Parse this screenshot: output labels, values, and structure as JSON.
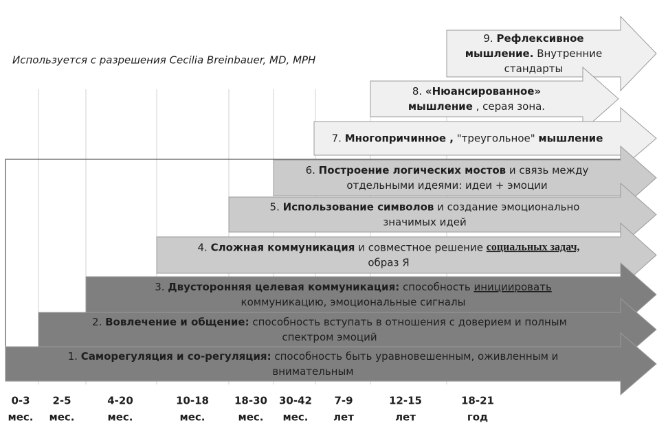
{
  "credit": "Используется с разрешения Cecilia Breinbauer, MD, MPH",
  "arrows": [
    {
      "lines": [
        [
          {
            "t": "1. "
          },
          {
            "t": "Саморегуляция и со-регуляция:",
            "b": true
          },
          {
            "t": " способность быть уравновешенным, оживленным и"
          }
        ],
        [
          {
            "t": "внимательным"
          }
        ]
      ]
    },
    {
      "lines": [
        [
          {
            "t": "2. "
          },
          {
            "t": "Вовлечение и общение:",
            "b": true
          },
          {
            "t": " способность вступать в отношения с доверием и полным"
          }
        ],
        [
          {
            "t": "спектром эмоций"
          }
        ]
      ]
    },
    {
      "lines": [
        [
          {
            "t": "3. "
          },
          {
            "t": "Двусторонняя целевая коммуникация:",
            "b": true
          },
          {
            "t": " способность "
          },
          {
            "t": "инициировать",
            "u": true
          }
        ],
        [
          {
            "t": "коммуникацию, эмоциональные сигналы"
          }
        ]
      ]
    },
    {
      "lines": [
        [
          {
            "t": "4. "
          },
          {
            "t": "Сложная коммуникация",
            "b": true
          },
          {
            "t": " и совместное решение "
          },
          {
            "t": "социальных задач,",
            "u": true,
            "serif": true
          }
        ],
        [
          {
            "t": "образ Я"
          }
        ]
      ]
    },
    {
      "lines": [
        [
          {
            "t": "5. "
          },
          {
            "t": "Использование символов",
            "b": true
          },
          {
            "t": " и создание эмоционально"
          }
        ],
        [
          {
            "t": "значимых идей"
          }
        ]
      ]
    },
    {
      "lines": [
        [
          {
            "t": "6. "
          },
          {
            "t": "Построение логических мостов",
            "b": true
          },
          {
            "t": " и связь между"
          }
        ],
        [
          {
            "t": "отдельными идеями: идеи + эмоции"
          }
        ]
      ]
    },
    {
      "lines": [
        [
          {
            "t": "7. "
          },
          {
            "t": "Многопричинное ,",
            "b": true
          },
          {
            "t": " \"треугольное\" "
          },
          {
            "t": "мышление",
            "b": true
          }
        ]
      ]
    },
    {
      "lines": [
        [
          {
            "t": "8. "
          },
          {
            "t": "«Нюансированное»",
            "b": true
          }
        ],
        [
          {
            "t": "мышление",
            "b": true
          },
          {
            "t": " , серая зона."
          }
        ]
      ]
    },
    {
      "lines": [
        [
          {
            "t": "9. "
          },
          {
            "t": "Рефлексивное",
            "b": true
          }
        ],
        [
          {
            "t": "мышление.",
            "b": true
          },
          {
            "t": " Внутренние"
          }
        ],
        [
          {
            "t": "стандарты"
          }
        ]
      ]
    }
  ],
  "ages": [
    {
      "top": "0-3",
      "bottom": "мес."
    },
    {
      "top": "2-5",
      "bottom": "мес."
    },
    {
      "top": "4-20",
      "bottom": "мес."
    },
    {
      "top": "10-18",
      "bottom": "мес."
    },
    {
      "top": "18-30",
      "bottom": "мес."
    },
    {
      "top": "30-42",
      "bottom": "мес."
    },
    {
      "top": "7-9",
      "bottom": "лет"
    },
    {
      "top": "12-15",
      "bottom": "лет"
    },
    {
      "top": "18-21",
      "bottom": "год"
    }
  ]
}
